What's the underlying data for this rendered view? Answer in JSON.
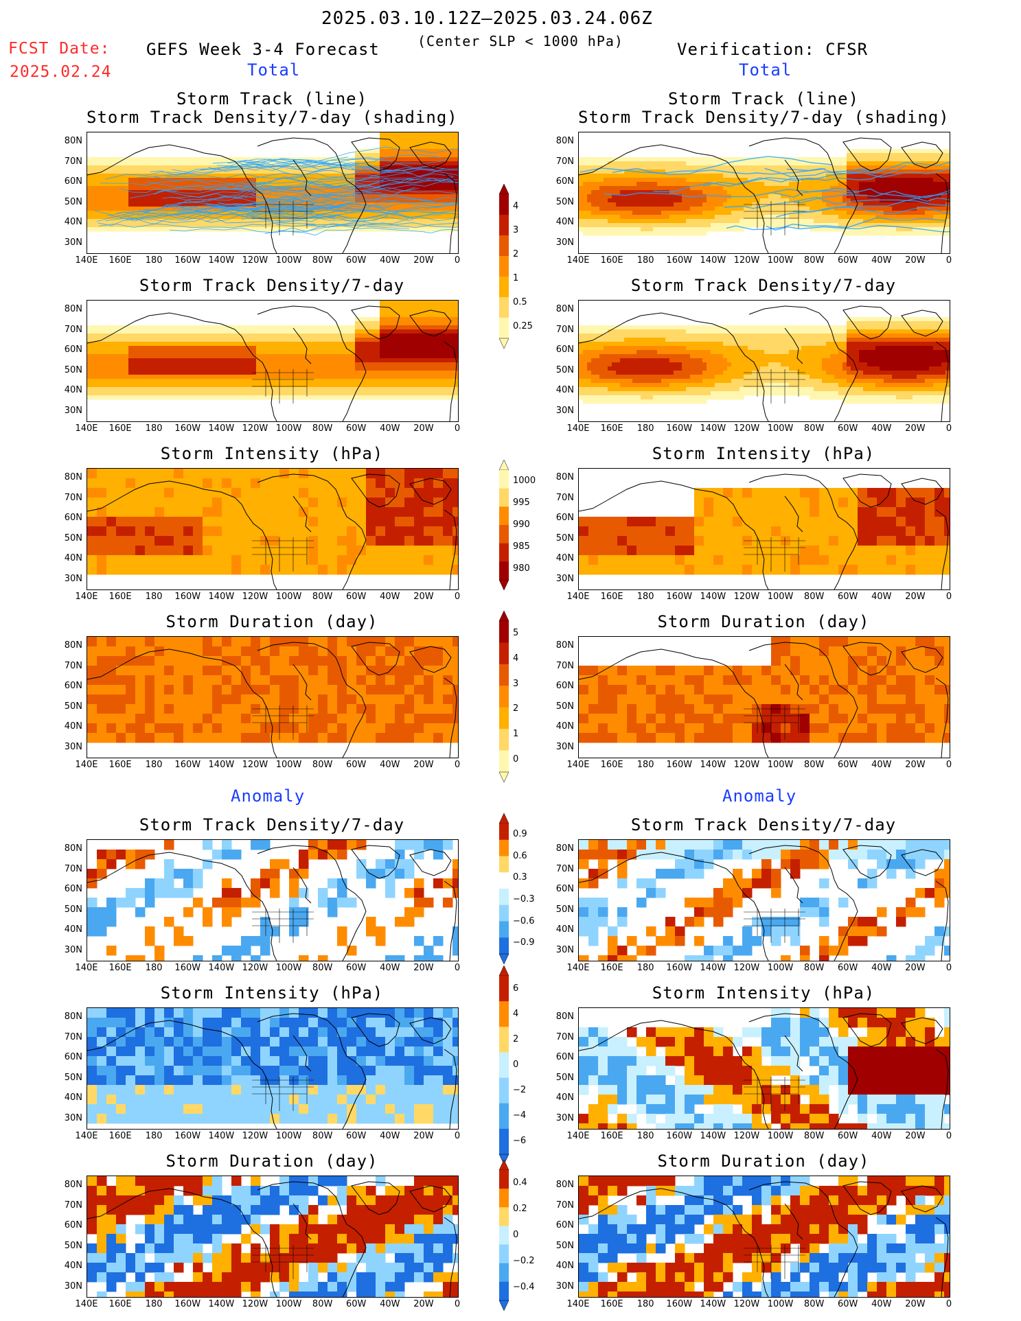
{
  "header": {
    "date_range": "2025.03.10.12Z–2025.03.24.06Z",
    "criterion": "(Center SLP < 1000 hPa)",
    "fcst_label": "FCST Date:",
    "fcst_date": "2025.02.24",
    "left_title": "GEFS Week 3-4 Forecast",
    "right_title": "Verification: CFSR",
    "total_label": "Total",
    "anomaly_label": "Anomaly"
  },
  "panel_titles": {
    "track_line": "Storm Track (line)",
    "track_shading": "Storm Track Density/7-day (shading)",
    "density": "Storm Track Density/7-day",
    "intensity": "Storm Intensity (hPa)",
    "duration": "Storm Duration (day)"
  },
  "x_ticks": [
    "140E",
    "160E",
    "180",
    "160W",
    "140W",
    "120W",
    "100W",
    "80W",
    "60W",
    "40W",
    "20W",
    "0"
  ],
  "y_ticks": [
    "80N",
    "70N",
    "60N",
    "50N",
    "40N",
    "30N"
  ],
  "colorbars": {
    "density": [
      "4",
      "3",
      "2",
      "1",
      "0.5",
      "0.25"
    ],
    "intensity": [
      "1000",
      "995",
      "990",
      "985",
      "980"
    ],
    "duration": [
      "5",
      "4",
      "3",
      "2",
      "1",
      "0"
    ],
    "density_anom": [
      "0.9",
      "0.6",
      "0.3",
      "−0.3",
      "−0.6",
      "−0.9"
    ],
    "intensity_anom": [
      "6",
      "4",
      "2",
      "0",
      "−2",
      "−4",
      "−6"
    ],
    "duration_anom": [
      "0.4",
      "0.2",
      "0",
      "−0.2",
      "−0.4"
    ]
  },
  "colors": {
    "warm": [
      "#fff7b0",
      "#ffd866",
      "#ffb000",
      "#ff8c00",
      "#e85a00",
      "#c42000",
      "#a00000"
    ],
    "cool": [
      "#c8f0ff",
      "#8fd4ff",
      "#4aa8f0",
      "#1e6fe0"
    ],
    "track_line": "#2aa3ff"
  }
}
